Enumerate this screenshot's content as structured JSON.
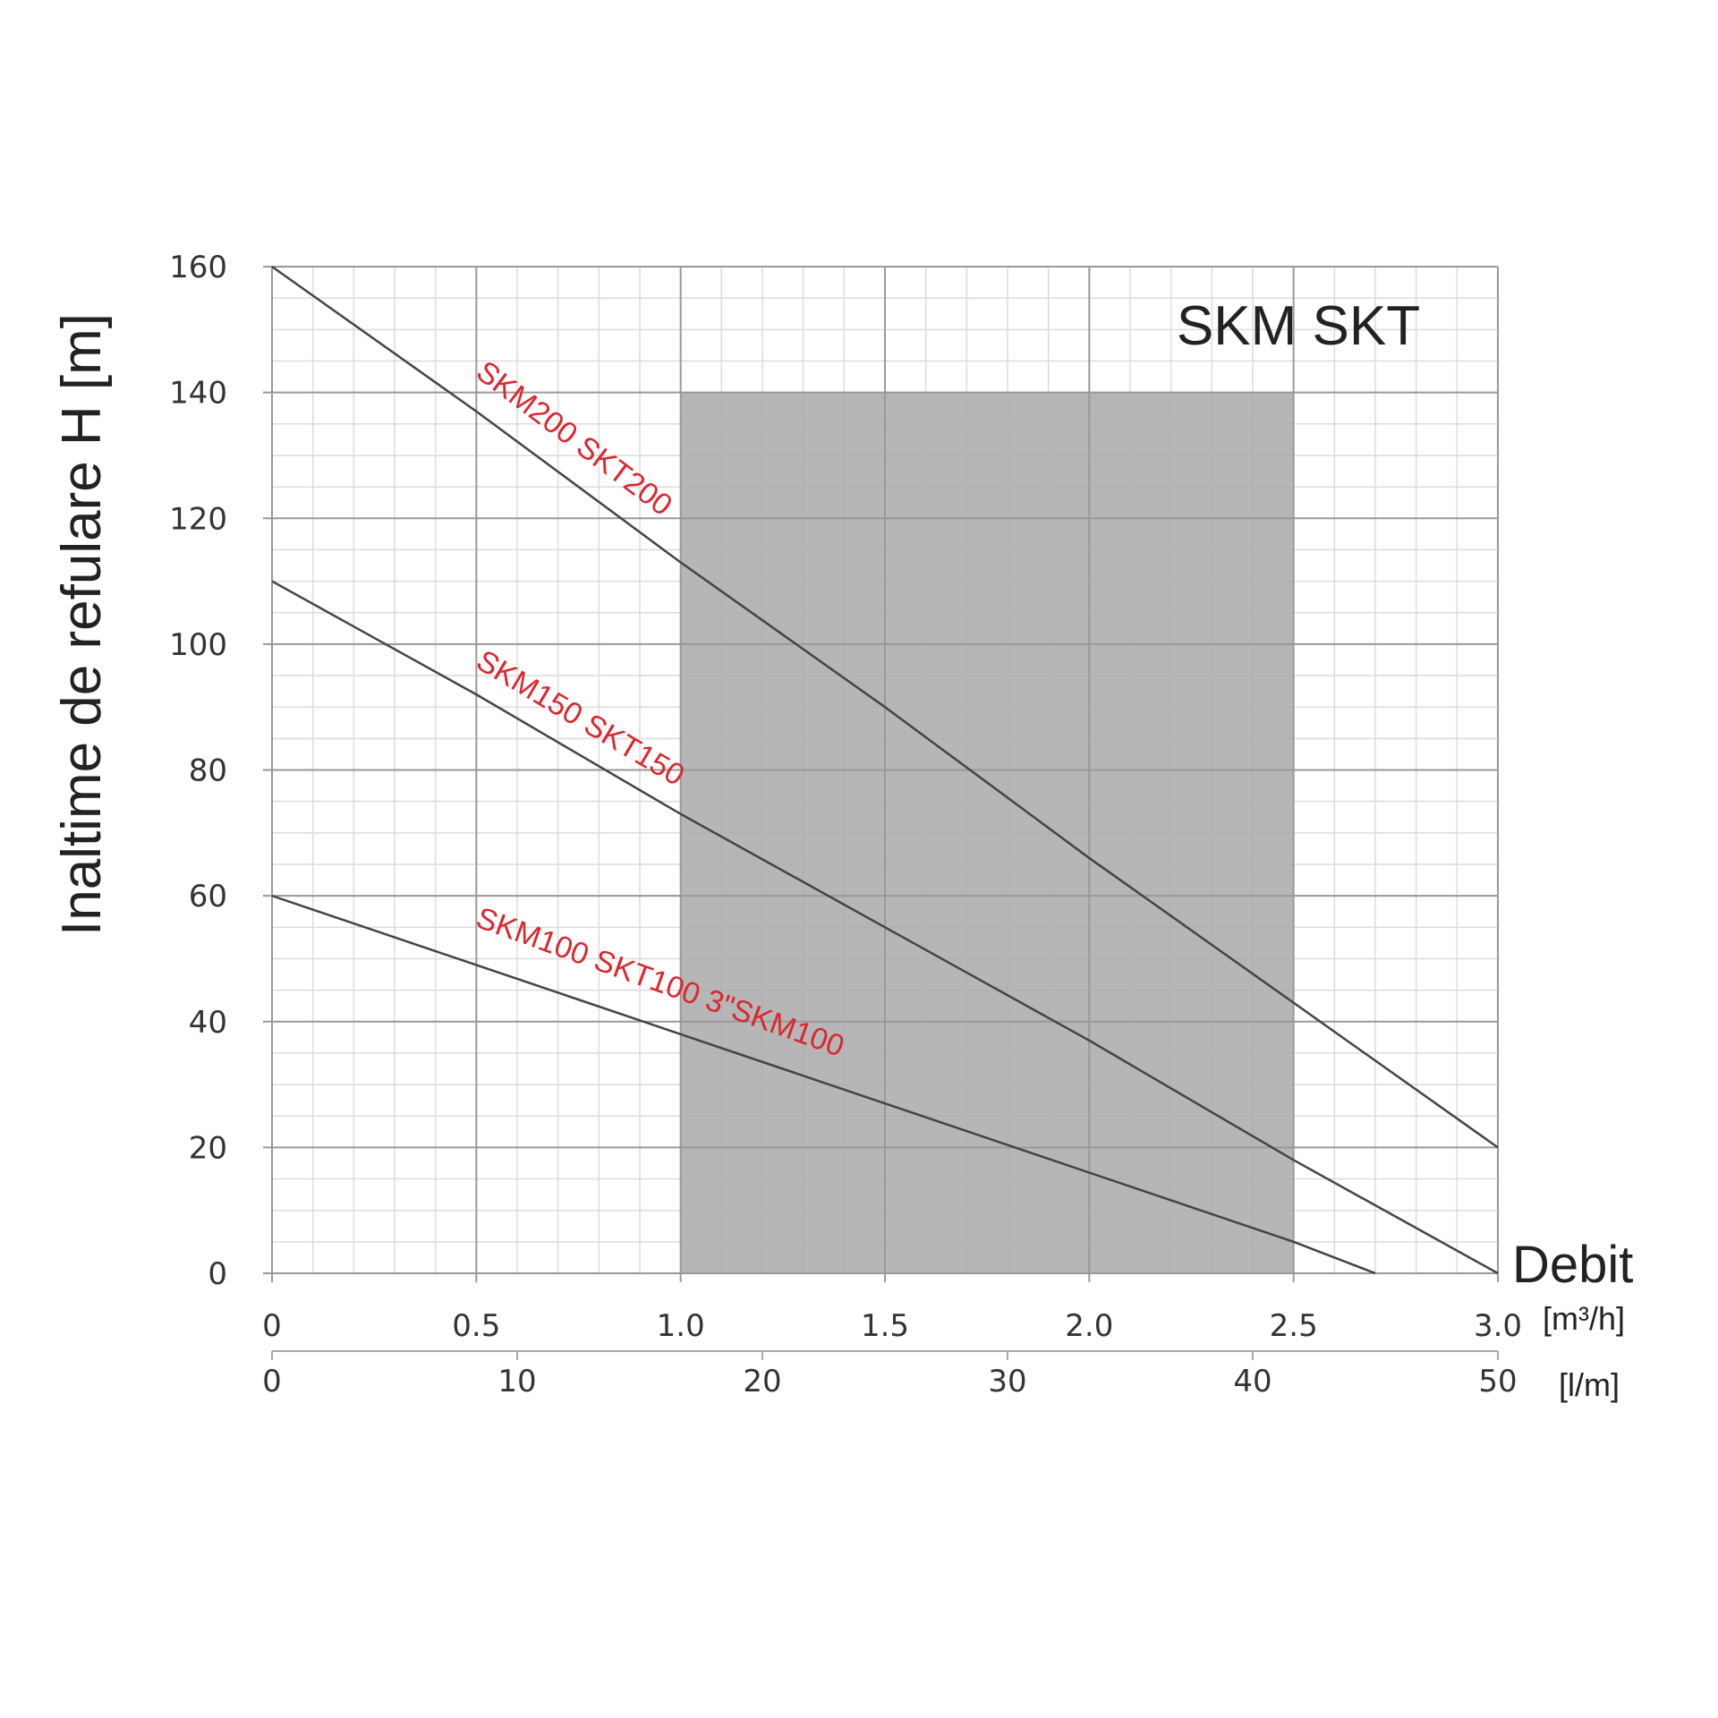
{
  "chart_data": {
    "type": "line",
    "title": "SKM SKT",
    "ylabel": "Inaltime de refulare H [m]",
    "xlabel": "Debit",
    "x_unit_primary": "[m³/h]",
    "x_unit_secondary": "[l/m]",
    "xlim": [
      0,
      3.0
    ],
    "ylim": [
      0,
      160
    ],
    "grid": true,
    "x_ticks": [
      "0",
      "0.5",
      "1.0",
      "1.5",
      "2.0",
      "2.5",
      "3.0"
    ],
    "x_ticks_secondary": [
      "0",
      "10",
      "20",
      "30",
      "40",
      "50"
    ],
    "y_ticks": [
      "0",
      "20",
      "40",
      "60",
      "80",
      "100",
      "120",
      "140",
      "160"
    ],
    "shaded_region": {
      "x": [
        1.0,
        2.5
      ],
      "y": [
        0,
        140
      ],
      "color": "#a9a9a9"
    },
    "series": [
      {
        "name": "SKM200 SKT200",
        "x": [
          0,
          0.5,
          1.0,
          1.5,
          2.0,
          2.5,
          3.0
        ],
        "y": [
          160,
          137,
          113,
          90,
          66,
          43,
          20
        ]
      },
      {
        "name": "SKM150 SKT150",
        "x": [
          0,
          0.5,
          1.0,
          1.5,
          2.0,
          2.5,
          3.0
        ],
        "y": [
          110,
          92,
          73,
          55,
          37,
          18,
          0
        ]
      },
      {
        "name": "SKM100 SKT100   3\"SKM100",
        "x": [
          0,
          0.5,
          1.0,
          1.5,
          2.0,
          2.5,
          2.7
        ],
        "y": [
          60,
          49,
          38,
          27,
          16,
          5,
          0
        ]
      }
    ],
    "label_color": "#d9282f"
  }
}
